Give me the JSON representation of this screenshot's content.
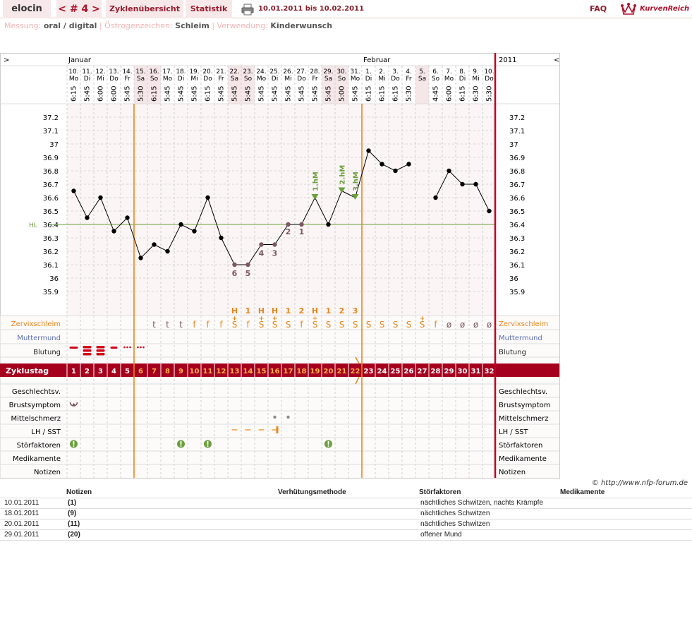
{
  "header": {
    "user": "elocin",
    "cycle_nav": "< # 4 >",
    "tabs": [
      "Zyklenübersicht",
      "Statistik"
    ],
    "date_range": "10.01.2011 bis 10.02.2011",
    "faq": "FAQ",
    "brand": "KurvenReich",
    "print_icon": "printer-icon",
    "brand_icon": "crown-icon"
  },
  "info": {
    "messung_label": "Messung:",
    "messung_value": "oral / digital",
    "oestrogen_label": "Östrogenzeichen:",
    "oestrogen_value": "Schleim",
    "verwendung_label": "Verwendung:",
    "verwendung_value": "Kinderwunsch"
  },
  "chart_data": {
    "type": "line",
    "month_labels": [
      "Januar",
      "Februar"
    ],
    "year_label": "2011",
    "nav_left": ">",
    "nav_right": "<",
    "dates": [
      "10.",
      "11.",
      "12.",
      "13.",
      "14.",
      "15.",
      "16.",
      "17.",
      "18.",
      "19.",
      "20.",
      "21.",
      "22.",
      "23.",
      "24.",
      "25.",
      "26.",
      "27.",
      "28.",
      "29.",
      "30.",
      "31.",
      "1.",
      "2.",
      "3.",
      "4.",
      "5.",
      "6.",
      "7.",
      "8.",
      "9.",
      "10."
    ],
    "weekdays": [
      "Mo",
      "Di",
      "Mi",
      "Do",
      "Fr",
      "Sa",
      "So",
      "Mo",
      "Di",
      "Mi",
      "Do",
      "Fr",
      "Sa",
      "So",
      "Mo",
      "Di",
      "Mi",
      "Do",
      "Fr",
      "Sa",
      "So",
      "Mo",
      "Di",
      "Mi",
      "Do",
      "Fr",
      "Sa",
      "So",
      "Mo",
      "Di",
      "Mi",
      "Do"
    ],
    "times": [
      "6:15",
      "5:45",
      "6:00",
      "6:00",
      "5:45",
      "5:30",
      "6:15",
      "5:45",
      "5:45",
      "5:45",
      "6:15",
      "5:45",
      "5:45",
      "5:45",
      "5:45",
      "5:45",
      "5:45",
      "5:45",
      "5:45",
      "5:45",
      "5:00",
      "5:45",
      "6:15",
      "6:15",
      "6:15",
      "5:30",
      "",
      "4:45",
      "6:00",
      "6:15",
      "6:30",
      "5:30"
    ],
    "weekend_cols": [
      5,
      6,
      12,
      13,
      19,
      20,
      26
    ],
    "temperatures": [
      36.65,
      36.45,
      36.6,
      36.35,
      36.45,
      36.15,
      36.25,
      36.2,
      36.4,
      36.35,
      36.6,
      36.3,
      36.1,
      36.1,
      36.25,
      36.25,
      36.4,
      36.4,
      36.6,
      36.4,
      36.65,
      36.6,
      36.95,
      36.85,
      36.8,
      36.85,
      null,
      36.6,
      36.8,
      36.7,
      36.7,
      36.5
    ],
    "y_ticks": [
      "37.2",
      "37.1",
      "37",
      "36.9",
      "36.8",
      "36.7",
      "36.6",
      "36.5",
      "36.4",
      "36.3",
      "36.2",
      "36.1",
      "36",
      "35.9"
    ],
    "ylim": [
      35.9,
      37.2
    ],
    "coverline": 36.4,
    "coverline_label": "HL",
    "count_labels": [
      {
        "day": 12,
        "text": "6"
      },
      {
        "day": 13,
        "text": "5"
      },
      {
        "day": 14,
        "text": "4"
      },
      {
        "day": 15,
        "text": "3"
      },
      {
        "day": 16,
        "text": "2"
      },
      {
        "day": 17,
        "text": "1"
      }
    ],
    "peak_markers": [
      {
        "day": 18,
        "text": "1.hM"
      },
      {
        "day": 20,
        "text": "2.hM"
      },
      {
        "day": 21,
        "text": "3.hM"
      }
    ],
    "vertical_lines": [
      4.5,
      21.5
    ],
    "mucus_peak_row": [
      "",
      "",
      "",
      "",
      "",
      "",
      "",
      "",
      "",
      "",
      "",
      "",
      "H",
      "1",
      "H",
      "H",
      "1",
      "2",
      "H",
      "1",
      "2",
      "3",
      "",
      "",
      "",
      "",
      "",
      "",
      "",
      "",
      "",
      ""
    ],
    "mucus_row": [
      "",
      "",
      "",
      "",
      "",
      "",
      "t",
      "t",
      "t",
      "f",
      "f",
      "f",
      "S+",
      "f",
      "S+",
      "S+",
      "S",
      "f",
      "S+",
      "S",
      "S",
      "S",
      "S",
      "S",
      "S",
      "S",
      "S+",
      "f",
      "ø",
      "ø",
      "ø",
      "ø"
    ],
    "cycle_days": [
      "1",
      "2",
      "3",
      "4",
      "5",
      "6",
      "7",
      "8",
      "9",
      "10",
      "11",
      "12",
      "13",
      "14",
      "15",
      "16",
      "17",
      "18",
      "19",
      "20",
      "21",
      "22",
      "23",
      "24",
      "25",
      "26",
      "27",
      "28",
      "29",
      "30",
      "31",
      "32"
    ],
    "rows_top": [
      "Zervixschleim",
      "Muttermund",
      "Blutung"
    ],
    "row_cycle": "Zyklustag",
    "rows_bottom": [
      "Geschlechtsv.",
      "Brustsymptom",
      "Mittelschmerz",
      "LH / SST",
      "Störfaktoren",
      "Medikamente",
      "Notizen"
    ],
    "bleeding": {
      "heavy_days": [
        0
      ],
      "triple_days": [
        1,
        2
      ],
      "dash_days": [
        3
      ],
      "dotted_days": [
        4,
        5
      ]
    },
    "brust_icon_days": [
      0
    ],
    "mittelschmerz_days": [
      15,
      16
    ],
    "lh_dash_days": [
      12,
      13,
      14
    ],
    "lh_positive_days": [
      15
    ],
    "stoer_days": [
      0,
      8,
      10,
      19
    ]
  },
  "notes": {
    "headers": [
      "Notizen",
      "Verhütungsmethode",
      "Störfaktoren",
      "Medikamente"
    ],
    "copyright": "© http://www.nfp-forum.de",
    "rows": [
      {
        "date": "10.01.2011",
        "num": "(1)",
        "stoer": "nächtliches Schwitzen, nachts Krämpfe"
      },
      {
        "date": "18.01.2011",
        "num": "(9)",
        "stoer": "nächtliches Schwitzen"
      },
      {
        "date": "20.01.2011",
        "num": "(11)",
        "stoer": "nächtliches Schwitzen"
      },
      {
        "date": "29.01.2011",
        "num": "(20)",
        "stoer": "offener Mund"
      }
    ]
  },
  "colors": {
    "accent": "#a5001e",
    "weekend": "#f5e6e8",
    "orange": "#e8861b",
    "green": "#6a9f3c",
    "purple": "#7d5765",
    "mittelschmerz": "#8a8a8a"
  }
}
